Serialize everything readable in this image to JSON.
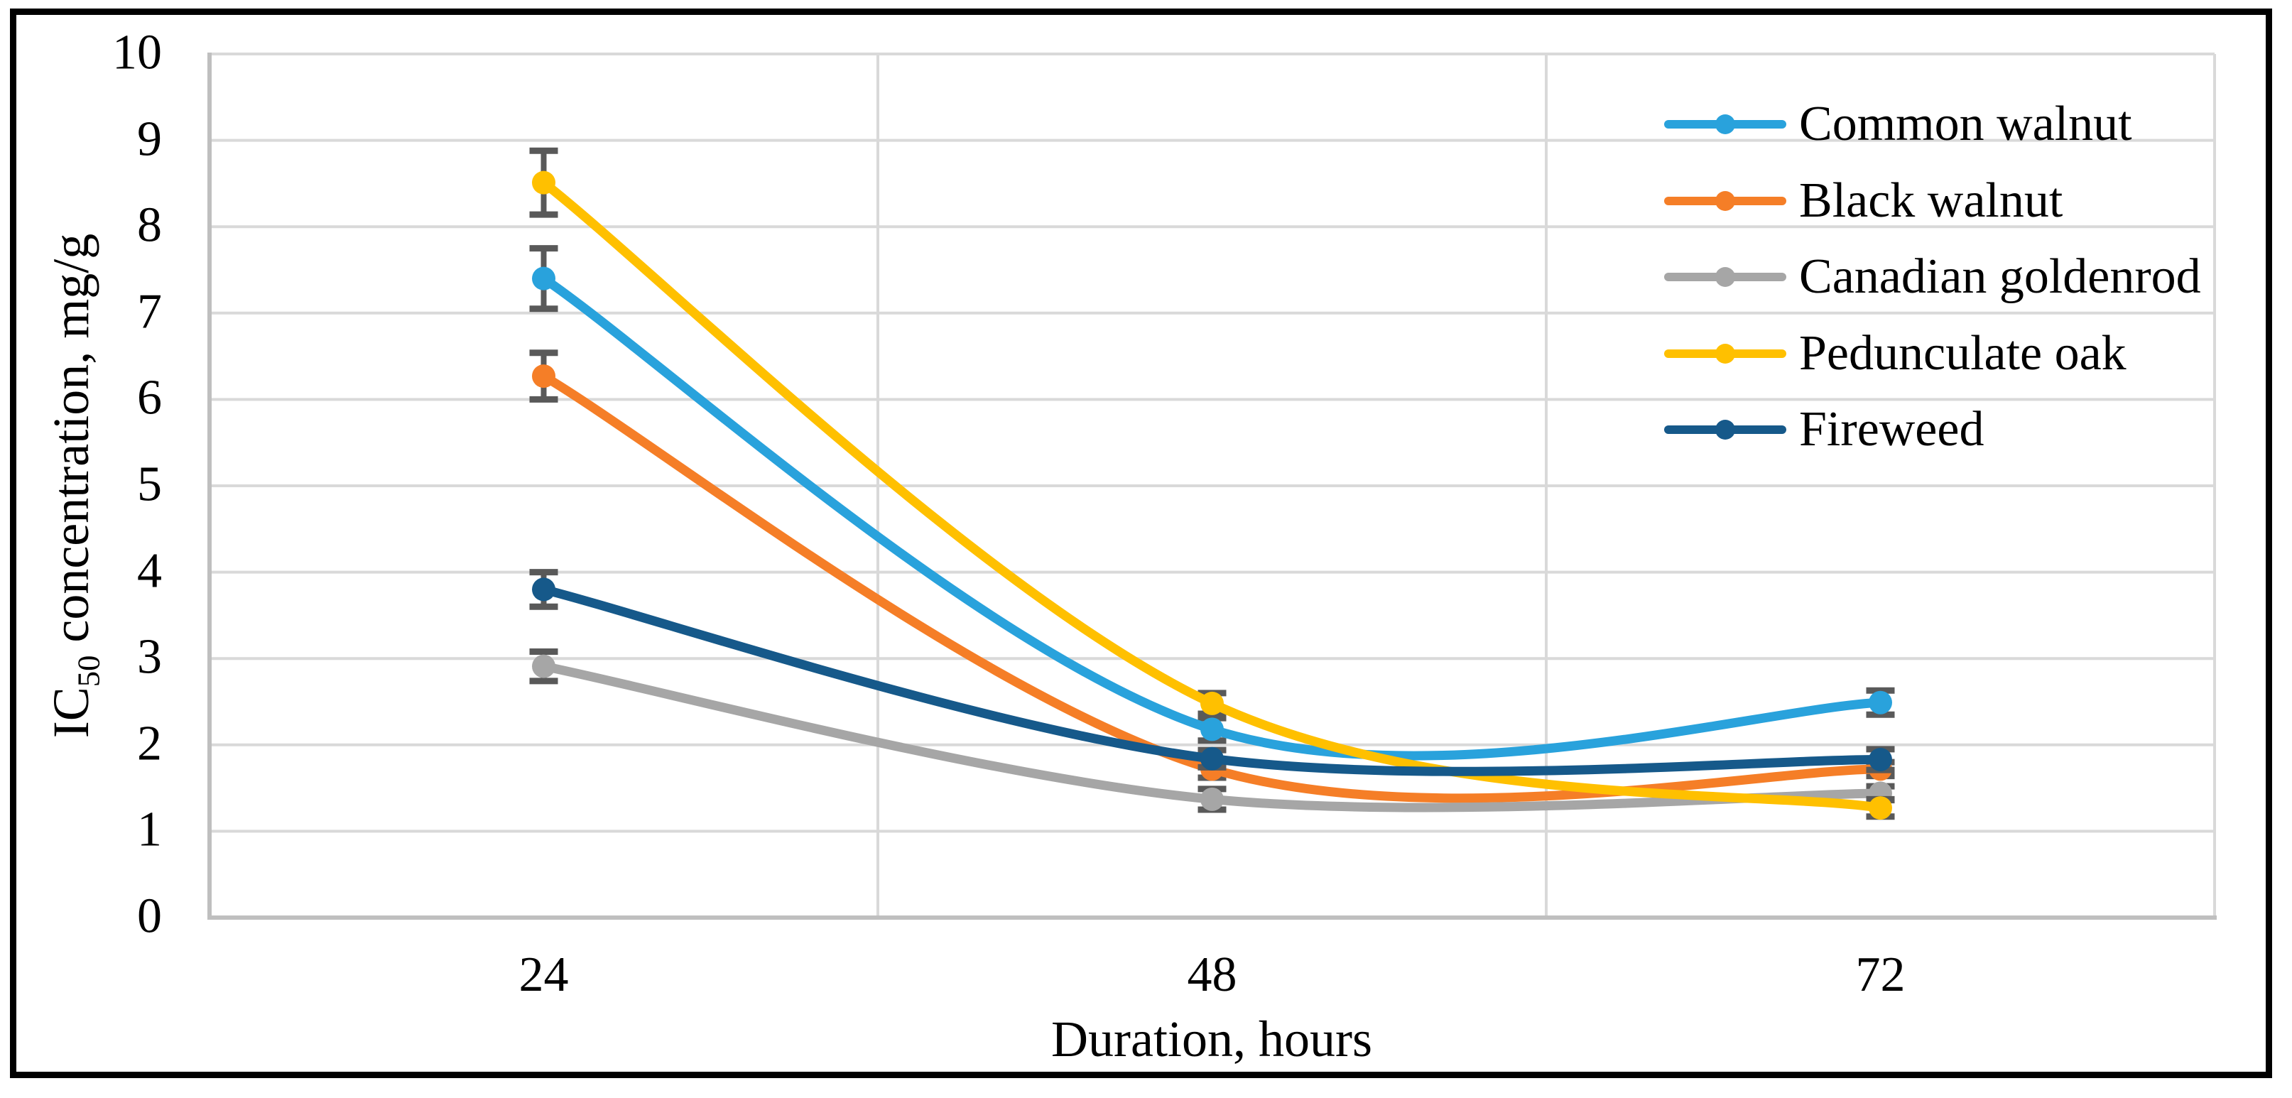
{
  "figure": {
    "background": "#ffffff",
    "border_color": "#000000"
  },
  "axes": {
    "x_title": "Duration, hours",
    "y_title_prefix": "IC",
    "y_title_sub": "50",
    "y_title_rest": " concentration, mg/g",
    "x_tick_labels": [
      "24",
      "48",
      "72"
    ],
    "y_tick_labels": [
      "0",
      "1",
      "2",
      "3",
      "4",
      "5",
      "6",
      "7",
      "8",
      "9",
      "10"
    ]
  },
  "legend": {
    "items": [
      "Common walnut",
      "Black walnut",
      "Canadian goldenrod",
      "Pedunculate oak",
      "Fireweed"
    ]
  },
  "colors": {
    "gridline": "#D9D9D9",
    "axis_line": "#BFBFBF",
    "error_bar": "#595959",
    "text": "#000000"
  },
  "chart_data": {
    "type": "line",
    "subtype": "smooth-lines-with-markers-and-error-bars",
    "title": "",
    "xlabel": "Duration, hours",
    "ylabel": "IC50 concentration, mg/g",
    "x": [
      24,
      48,
      72
    ],
    "categories": [
      "24",
      "48",
      "72"
    ],
    "ylim": [
      0,
      10
    ],
    "ytick_step": 1,
    "grid": true,
    "legend_position": "top-right-inside",
    "series": [
      {
        "name": "Common walnut",
        "color": "#29A2DC",
        "values": [
          7.4,
          2.18,
          2.49
        ],
        "errors": [
          0.35,
          0.13,
          0.14
        ]
      },
      {
        "name": "Black walnut",
        "color": "#F57E27",
        "values": [
          6.27,
          1.72,
          1.72
        ],
        "errors": [
          0.27,
          0.1,
          0.08
        ]
      },
      {
        "name": "Canadian goldenrod",
        "color": "#A6A6A6",
        "values": [
          2.91,
          1.37,
          1.44
        ],
        "errors": [
          0.17,
          0.12,
          0.08
        ]
      },
      {
        "name": "Pedunculate oak",
        "color": "#FFC000",
        "values": [
          8.51,
          2.48,
          1.27
        ],
        "errors": [
          0.37,
          0.12,
          0.1
        ]
      },
      {
        "name": "Fireweed",
        "color": "#16598A",
        "values": [
          3.8,
          1.84,
          1.83
        ],
        "errors": [
          0.2,
          0.1,
          0.12
        ]
      }
    ]
  }
}
